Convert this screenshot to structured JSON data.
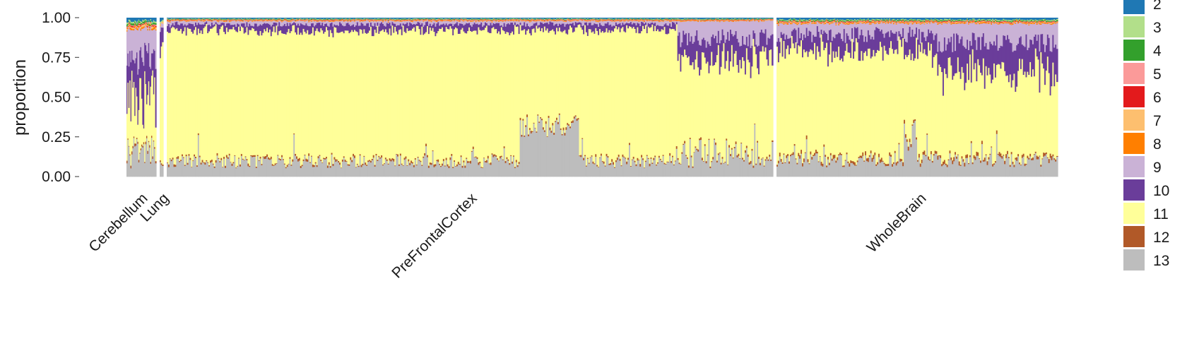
{
  "chart_data": {
    "type": "bar",
    "stacked": true,
    "ylabel": "proportion",
    "xlabel": "",
    "ylim": [
      0,
      1
    ],
    "yticks": [
      "0.00",
      "0.25",
      "0.50",
      "0.75",
      "1.00"
    ],
    "legend_position": "right",
    "groups": [
      "Cerebellum",
      "Lung",
      "PreFrontalCortex",
      "WholeBrain"
    ],
    "series": [
      {
        "name": "2",
        "color": "#1f78b4"
      },
      {
        "name": "3",
        "color": "#b2df8a"
      },
      {
        "name": "4",
        "color": "#33a02c"
      },
      {
        "name": "5",
        "color": "#fb9a99"
      },
      {
        "name": "6",
        "color": "#e31a1c"
      },
      {
        "name": "7",
        "color": "#fdbf6f"
      },
      {
        "name": "8",
        "color": "#ff7f00"
      },
      {
        "name": "9",
        "color": "#cab2d6"
      },
      {
        "name": "10",
        "color": "#6a3d9a"
      },
      {
        "name": "11",
        "color": "#ffff99"
      },
      {
        "name": "12",
        "color": "#b15928"
      },
      {
        "name": "13",
        "color": "#bdbdbd"
      }
    ],
    "group_profiles": [
      {
        "group": "Cerebellum",
        "columns": 30,
        "mean_proportions": [
          0.02,
          0.01,
          0.01,
          0.005,
          0.005,
          0.01,
          0.01,
          0.1,
          0.15,
          0.55,
          0.01,
          0.125
        ]
      },
      {
        "group": "Lung",
        "columns": 3,
        "mean_proportions": [
          0.02,
          0.01,
          0.0,
          0.0,
          0.0,
          0.01,
          0.0,
          0.03,
          0.1,
          0.72,
          0.01,
          0.1
        ]
      },
      {
        "group": "PreFrontalCortex",
        "columns": 450,
        "mean_proportions": [
          0.005,
          0.003,
          0.003,
          0.002,
          0.002,
          0.003,
          0.003,
          0.02,
          0.04,
          0.82,
          0.009,
          0.09
        ]
      },
      {
        "group": "WholeBrain",
        "columns": 210,
        "mean_proportions": [
          0.01,
          0.005,
          0.005,
          0.003,
          0.003,
          0.005,
          0.005,
          0.07,
          0.09,
          0.69,
          0.014,
          0.1
        ]
      }
    ]
  }
}
